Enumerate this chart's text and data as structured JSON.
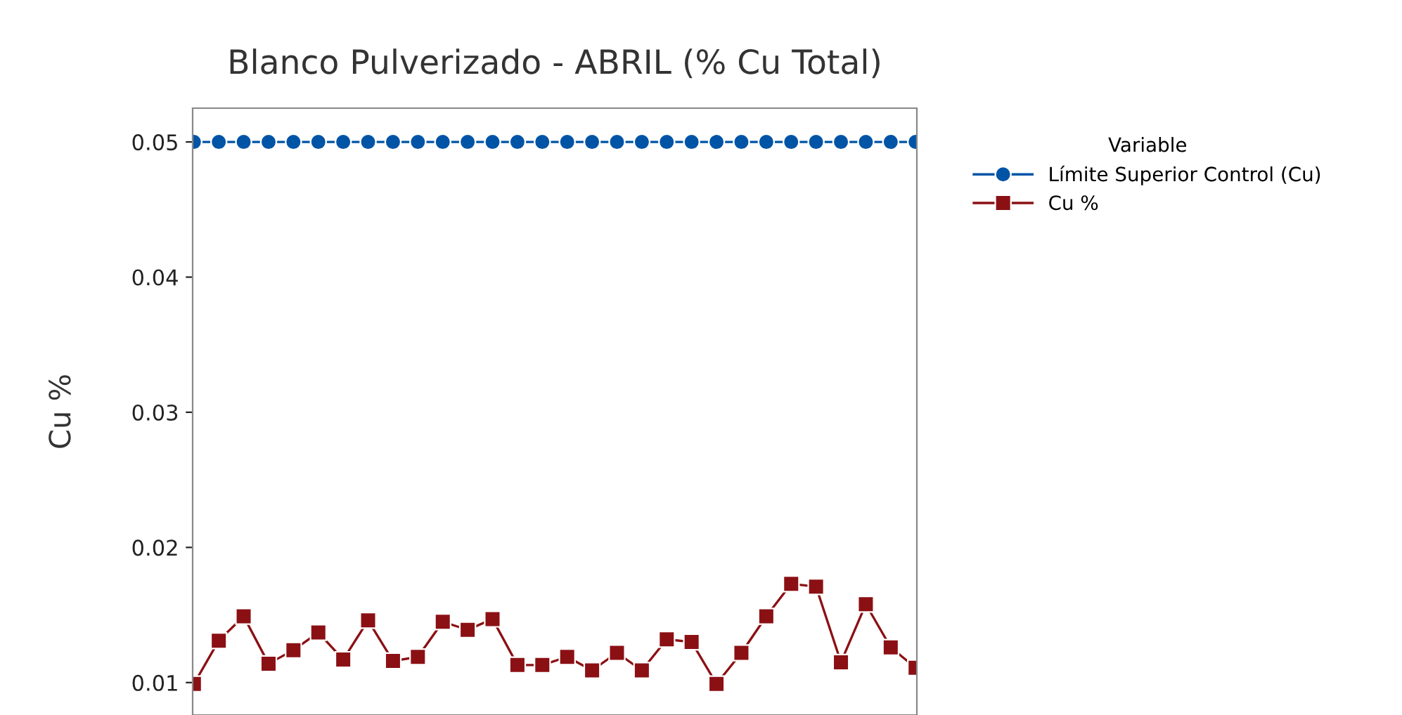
{
  "chart_data": {
    "type": "line",
    "title": "Blanco Pulverizado - ABRIL (% Cu Total)",
    "ylabel": "Cu %",
    "categories": [
      null,
      null,
      null,
      null,
      null,
      null,
      null,
      null,
      null,
      null,
      null,
      null,
      null,
      null,
      null,
      null,
      null,
      null,
      null,
      null,
      null,
      null,
      null,
      null,
      null,
      null,
      null,
      null,
      null,
      null
    ],
    "series": [
      {
        "name": "Límite Superior Control (Cu)",
        "color": "#0054a6",
        "marker": "circle",
        "values": [
          0.05,
          0.05,
          0.05,
          0.05,
          0.05,
          0.05,
          0.05,
          0.05,
          0.05,
          0.05,
          0.05,
          0.05,
          0.05,
          0.05,
          0.05,
          0.05,
          0.05,
          0.05,
          0.05,
          0.05,
          0.05,
          0.05,
          0.05,
          0.05,
          0.05,
          0.05,
          0.05,
          0.05,
          0.05,
          0.05
        ]
      },
      {
        "name": "Cu %",
        "color": "#8b1014",
        "marker": "square",
        "values": [
          0.0099,
          0.0131,
          0.0149,
          0.0114,
          0.0124,
          0.0137,
          0.0117,
          0.0146,
          0.0116,
          0.0119,
          0.0145,
          0.0139,
          0.0147,
          0.0113,
          0.0113,
          0.0119,
          0.0109,
          0.0122,
          0.0109,
          0.0132,
          0.013,
          0.0099,
          0.0122,
          0.0149,
          0.0173,
          0.0171,
          0.0115,
          0.0158,
          0.0126,
          0.0111
        ]
      }
    ],
    "ylim": [
      0.0076,
      0.0525
    ],
    "yticks": [
      0.01,
      0.02,
      0.03,
      0.04,
      0.05
    ],
    "legend_title": "Variable",
    "legend": "right",
    "tick_labels": "y",
    "grid": false,
    "line_style": "solid"
  }
}
